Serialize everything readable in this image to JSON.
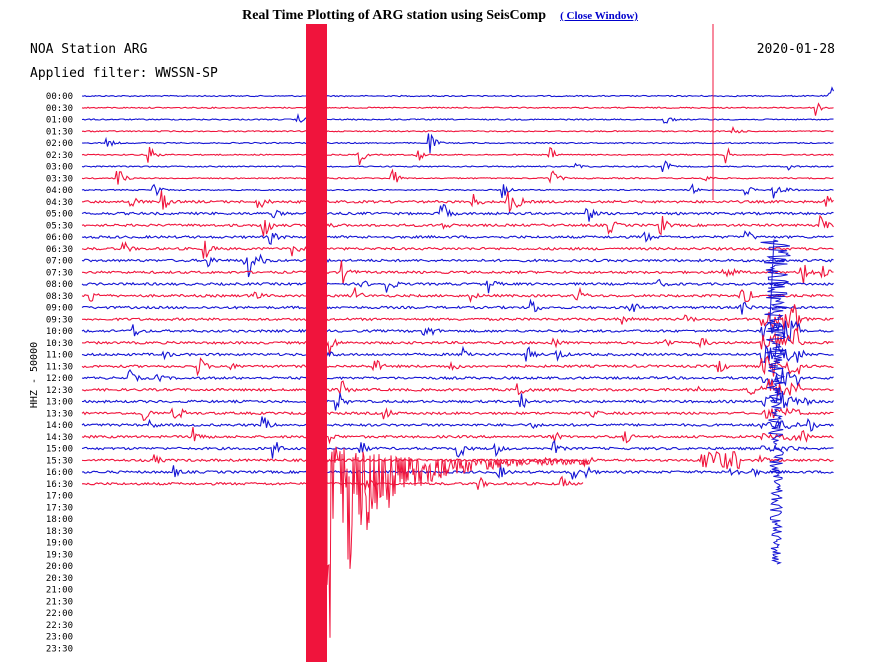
{
  "header": {
    "title": "Real Time Plotting of ARG station using SeisComp",
    "close_label": "( Close Window)"
  },
  "plot": {
    "station_label": "NOA Station ARG",
    "filter_label": "Applied filter: WWSSN-SP",
    "date": "2020-01-28",
    "channel_label": "HHZ - 50000"
  },
  "colors": {
    "blue": "#1414d4",
    "red": "#f0143c",
    "background": "#ffffff",
    "link": "#0000cc"
  },
  "chart_data": {
    "type": "line",
    "title": "",
    "description_type": "helicorder seismogram, one trace per 30-minute time slot",
    "time_labels": [
      "00:00",
      "00:30",
      "01:00",
      "01:30",
      "02:00",
      "02:30",
      "03:00",
      "03:30",
      "04:00",
      "04:30",
      "05:00",
      "05:30",
      "06:00",
      "06:30",
      "07:00",
      "07:30",
      "08:00",
      "08:30",
      "09:00",
      "09:30",
      "10:00",
      "10:30",
      "11:00",
      "11:30",
      "12:00",
      "12:30",
      "13:00",
      "13:30",
      "14:00",
      "14:30",
      "15:00",
      "15:30",
      "16:00",
      "16:30",
      "17:00",
      "17:30",
      "18:00",
      "18:30",
      "19:00",
      "19:30",
      "20:00",
      "20:30",
      "21:00",
      "21:30",
      "22:00",
      "22:30",
      "23:00",
      "23:30"
    ],
    "line_colors": [
      "blue",
      "red"
    ],
    "recorded_until_minute_of_last_trace": 20,
    "last_recorded_label": "16:30",
    "main_event": {
      "start_label": "15:30",
      "coda_until": "16:30"
    },
    "late_event": {
      "label": "09:30",
      "coda_until": "15:00"
    }
  }
}
